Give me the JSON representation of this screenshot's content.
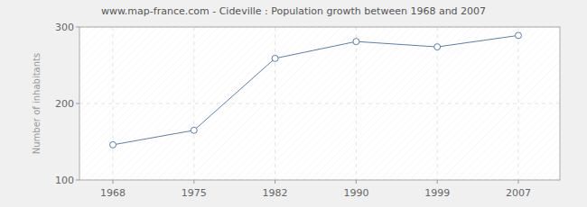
{
  "chart_data": {
    "type": "line",
    "title": "www.map-france.com - Cideville : Population growth between 1968 and 2007",
    "y_label": "Number of inhabitants",
    "categories": [
      "1968",
      "1975",
      "1982",
      "1990",
      "1999",
      "2007"
    ],
    "values": [
      146,
      165,
      259,
      281,
      274,
      289
    ],
    "color": "#5b7fa8",
    "marker": "circle",
    "ylim": [
      100,
      300
    ],
    "yticks": [
      100,
      200,
      300
    ],
    "grid": true
  }
}
